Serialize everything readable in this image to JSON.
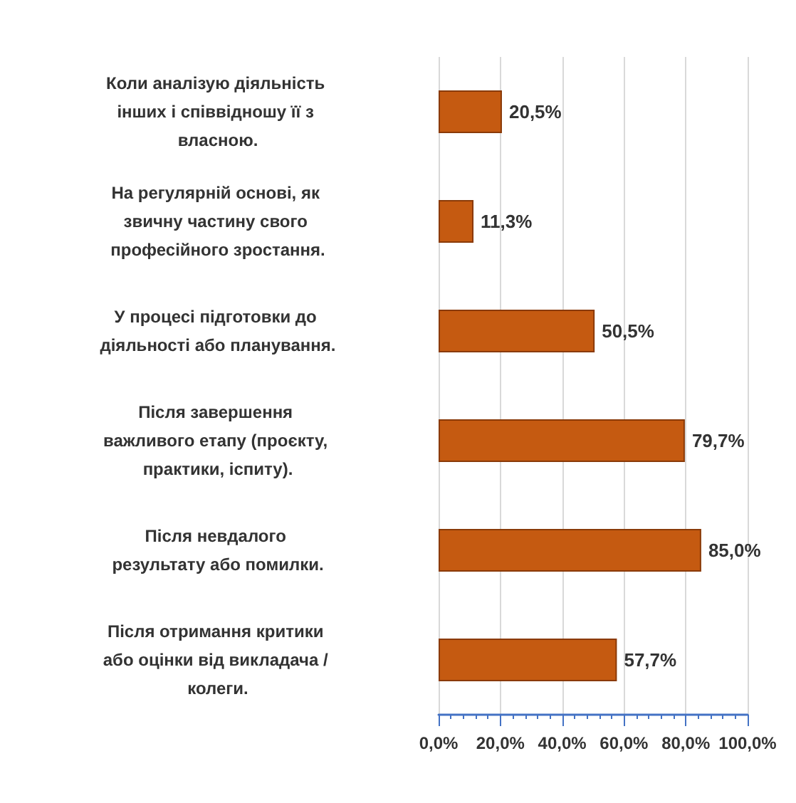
{
  "chart_data": {
    "type": "bar",
    "orientation": "horizontal",
    "categories": [
      "Коли аналізую діяльність інших і співвідношу її з власною.",
      "На регулярній основі, як звичну частину свого професійного зростання.",
      "У процесі підготовки до діяльності або планування.",
      "Після завершення важливого етапу (проєкту, практики, іспиту).",
      "Після невдалого результату або помилки.",
      "Після отримання критики або оцінки від викладача / колеги."
    ],
    "values": [
      20.5,
      11.3,
      50.5,
      79.7,
      85.0,
      57.7
    ],
    "color": "#c55a11",
    "xlim": [
      0,
      100
    ],
    "xticks": [
      {
        "value": 0,
        "label": "0,0%"
      },
      {
        "value": 20,
        "label": "20,0%"
      },
      {
        "value": 40,
        "label": "40,0%"
      },
      {
        "value": 60,
        "label": "60,0%"
      },
      {
        "value": 80,
        "label": "80,0%"
      },
      {
        "value": 100,
        "label": "100,0%"
      }
    ],
    "grid": "x",
    "value_labels": [
      "20,5%",
      "11,3%",
      "50,5%",
      "79,7%",
      "85,0%",
      "57,7%"
    ]
  }
}
